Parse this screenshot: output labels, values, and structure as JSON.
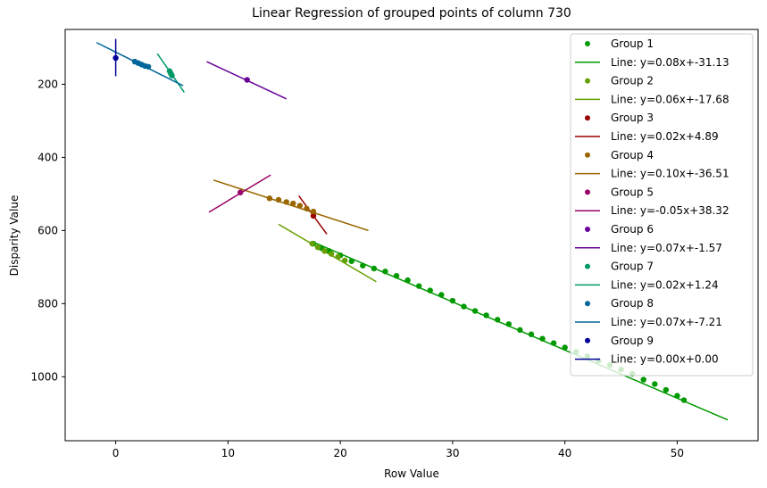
{
  "chart_data": {
    "type": "scatter",
    "title": "Linear Regression of grouped points of column 730",
    "xlabel": "Row Value",
    "ylabel": "Disparity Value",
    "xlim": [
      -4.5,
      57.2
    ],
    "ylim": [
      1175,
      50
    ],
    "y_inverted": true,
    "xticks": [
      0,
      10,
      20,
      30,
      40,
      50
    ],
    "yticks": [
      200,
      400,
      600,
      800,
      1000
    ],
    "grid": false,
    "legend_position": "top-right",
    "series": [
      {
        "name": "Group 1",
        "line_label": "Line: y=0.08x+-31.13",
        "color": "#009900",
        "points": [
          [
            17.6,
            636
          ],
          [
            18.3,
            648
          ],
          [
            19,
            656
          ],
          [
            20,
            668
          ],
          [
            21,
            684
          ],
          [
            22,
            696
          ],
          [
            23,
            704
          ],
          [
            24,
            712
          ],
          [
            25,
            724
          ],
          [
            26,
            736
          ],
          [
            27,
            752
          ],
          [
            28,
            764
          ],
          [
            29,
            776
          ],
          [
            30,
            792
          ],
          [
            31,
            808
          ],
          [
            32,
            820
          ],
          [
            33,
            832
          ],
          [
            34,
            844
          ],
          [
            35,
            856
          ],
          [
            36,
            872
          ],
          [
            37,
            884
          ],
          [
            38,
            896
          ],
          [
            39,
            908
          ],
          [
            40,
            920
          ],
          [
            41,
            932
          ],
          [
            42,
            944
          ],
          [
            43,
            956
          ],
          [
            44,
            968
          ],
          [
            45,
            980
          ],
          [
            46,
            992
          ],
          [
            47,
            1008
          ],
          [
            48,
            1020
          ],
          [
            49,
            1036
          ],
          [
            50,
            1052
          ],
          [
            50.6,
            1064
          ]
        ],
        "line": [
          [
            17.6,
            632
          ],
          [
            54.5,
            1118
          ]
        ]
      },
      {
        "name": "Group 2",
        "line_label": "Line: y=0.06x+-17.68",
        "color": "#66a000",
        "points": [
          [
            17.5,
            636
          ],
          [
            18,
            646
          ],
          [
            18.6,
            656
          ],
          [
            19.2,
            664
          ],
          [
            19.8,
            672
          ],
          [
            20.4,
            682
          ]
        ],
        "line": [
          [
            14.5,
            583
          ],
          [
            23.2,
            740
          ]
        ]
      },
      {
        "name": "Group 3",
        "line_label": "Line: y=0.02x+4.89",
        "color": "#990000",
        "points": [
          [
            17.6,
            560
          ]
        ],
        "line": [
          [
            16.3,
            505
          ],
          [
            18.8,
            610
          ]
        ]
      },
      {
        "name": "Group 4",
        "line_label": "Line: y=0.10x+-36.51",
        "color": "#996600",
        "points": [
          [
            13.7,
            512
          ],
          [
            14.5,
            516
          ],
          [
            15.2,
            522
          ],
          [
            15.8,
            526
          ],
          [
            16.4,
            532
          ],
          [
            17,
            540
          ],
          [
            17.6,
            548
          ]
        ],
        "line": [
          [
            8.7,
            462
          ],
          [
            22.5,
            600
          ]
        ]
      },
      {
        "name": "Group 5",
        "line_label": "Line: y=-0.05x+38.32",
        "color": "#990066",
        "points": [
          [
            11.1,
            496
          ]
        ],
        "line": [
          [
            8.3,
            550
          ],
          [
            13.8,
            448
          ]
        ]
      },
      {
        "name": "Group 6",
        "line_label": "Line: y=0.07x+-1.57",
        "color": "#660099",
        "points": [
          [
            11.7,
            188
          ]
        ],
        "line": [
          [
            8.1,
            138
          ],
          [
            15.2,
            240
          ]
        ]
      },
      {
        "name": "Group 7",
        "line_label": "Line: y=0.02x+1.24",
        "color": "#009966",
        "points": [
          [
            4.8,
            164
          ],
          [
            4.9,
            170
          ],
          [
            5,
            176
          ]
        ],
        "line": [
          [
            3.7,
            116
          ],
          [
            6.1,
            222
          ]
        ]
      },
      {
        "name": "Group 8",
        "line_label": "Line: y=0.07x+-7.21",
        "color": "#006699",
        "points": [
          [
            1.7,
            138
          ],
          [
            2,
            142
          ],
          [
            2.3,
            146
          ],
          [
            2.6,
            150
          ],
          [
            2.9,
            152
          ]
        ],
        "line": [
          [
            -1.7,
            86
          ],
          [
            6,
            204
          ]
        ]
      },
      {
        "name": "Group 9",
        "line_label": "Line: y=0.00x+0.00",
        "color": "#000099",
        "points": [
          [
            0,
            128
          ]
        ],
        "line": [
          [
            0,
            76
          ],
          [
            0,
            178
          ]
        ]
      }
    ]
  }
}
